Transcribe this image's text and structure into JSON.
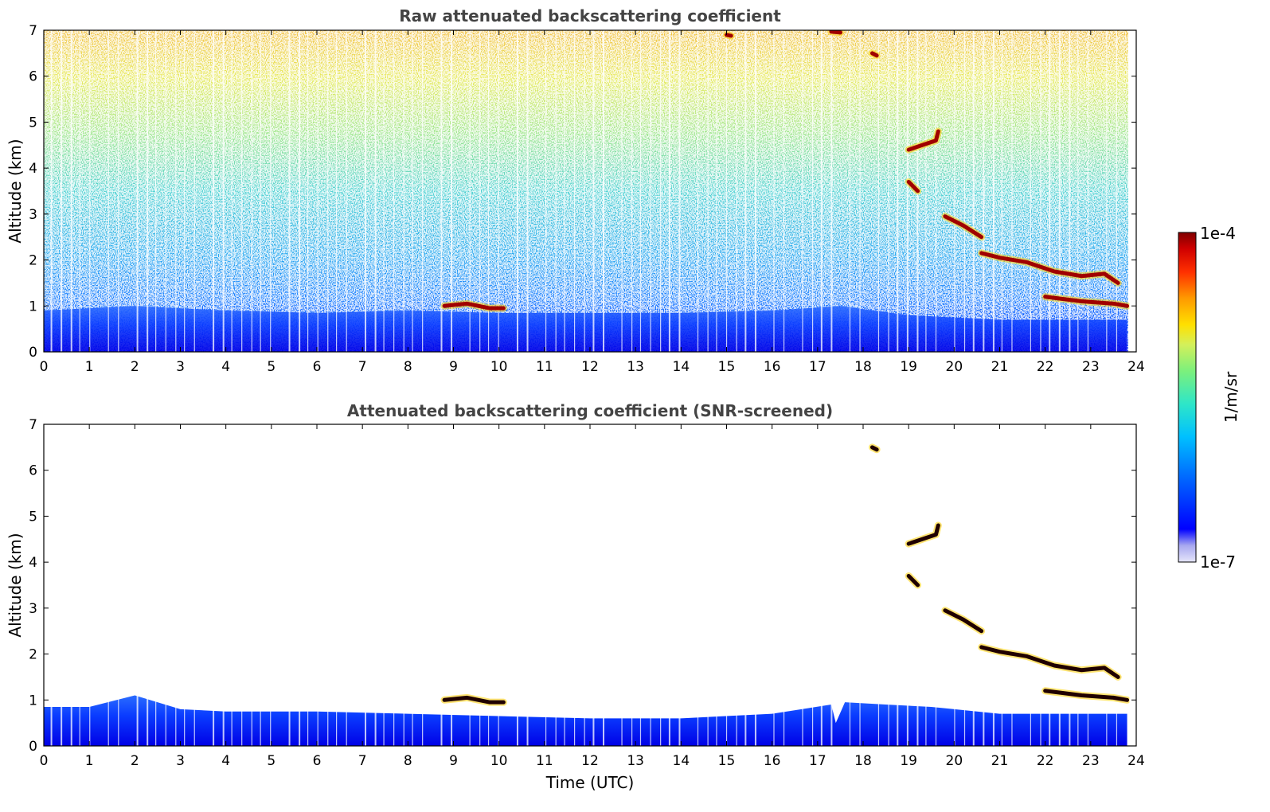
{
  "figure": {
    "colorbar": {
      "label": "1/m/sr",
      "max_label": "1e-4",
      "min_label": "1e-7",
      "scale": "log",
      "range": [
        1e-07,
        0.0001
      ],
      "colormap": [
        "#e6e6fa",
        "#b3b3f0",
        "#0000ff",
        "#0060ff",
        "#00c0ff",
        "#2ee6c8",
        "#7cf07c",
        "#d4f05a",
        "#ffe000",
        "#ff9a00",
        "#ff3000",
        "#d00000",
        "#800000"
      ]
    }
  },
  "chart_data": [
    {
      "type": "heatmap",
      "title": "Raw attenuated backscattering coefficient",
      "xlabel": "",
      "ylabel": "Altitude (km)",
      "xlim": [
        0,
        24
      ],
      "ylim": [
        0,
        7
      ],
      "xticks": [
        "0",
        "1",
        "2",
        "3",
        "4",
        "5",
        "6",
        "7",
        "8",
        "9",
        "10",
        "11",
        "12",
        "13",
        "14",
        "15",
        "16",
        "17",
        "18",
        "19",
        "20",
        "21",
        "22",
        "23",
        "24"
      ],
      "yticks": [
        "0",
        "1",
        "2",
        "3",
        "4",
        "5",
        "6",
        "7"
      ],
      "boundary_layer_top_km": [
        [
          0,
          0.9
        ],
        [
          2,
          1.0
        ],
        [
          4,
          0.9
        ],
        [
          6,
          0.85
        ],
        [
          8,
          0.9
        ],
        [
          10,
          0.85
        ],
        [
          12,
          0.85
        ],
        [
          14,
          0.85
        ],
        [
          16,
          0.9
        ],
        [
          17.5,
          1.0
        ],
        [
          19,
          0.8
        ],
        [
          21,
          0.7
        ],
        [
          23.8,
          0.7
        ]
      ],
      "cloud_layers": [
        {
          "points": [
            [
              8.8,
              1.0
            ],
            [
              9.3,
              1.05
            ],
            [
              9.8,
              0.95
            ],
            [
              10.1,
              0.95
            ]
          ]
        },
        {
          "points": [
            [
              19.0,
              4.4
            ],
            [
              19.3,
              4.5
            ],
            [
              19.6,
              4.6
            ],
            [
              19.65,
              4.8
            ]
          ]
        },
        {
          "points": [
            [
              19.0,
              3.7
            ],
            [
              19.2,
              3.5
            ]
          ]
        },
        {
          "points": [
            [
              19.8,
              2.95
            ],
            [
              20.2,
              2.75
            ],
            [
              20.6,
              2.5
            ]
          ]
        },
        {
          "points": [
            [
              20.6,
              2.15
            ],
            [
              21.0,
              2.05
            ],
            [
              21.6,
              1.95
            ],
            [
              22.2,
              1.75
            ],
            [
              22.8,
              1.65
            ],
            [
              23.3,
              1.7
            ],
            [
              23.6,
              1.5
            ]
          ]
        },
        {
          "points": [
            [
              22.0,
              1.2
            ],
            [
              22.8,
              1.1
            ],
            [
              23.5,
              1.05
            ],
            [
              23.8,
              1.0
            ]
          ]
        },
        {
          "points": [
            [
              18.2,
              6.5
            ],
            [
              18.3,
              6.45
            ]
          ]
        },
        {
          "points": [
            [
              15.0,
              6.9
            ],
            [
              15.1,
              6.88
            ]
          ]
        },
        {
          "points": [
            [
              17.3,
              6.97
            ],
            [
              17.5,
              6.95
            ]
          ]
        }
      ],
      "data_end_utc": 23.85
    },
    {
      "type": "heatmap",
      "title": "Attenuated backscattering coefficient (SNR-screened)",
      "xlabel": "Time (UTC)",
      "ylabel": "Altitude (km)",
      "xlim": [
        0,
        24
      ],
      "ylim": [
        0,
        7
      ],
      "xticks": [
        "0",
        "1",
        "2",
        "3",
        "4",
        "5",
        "6",
        "7",
        "8",
        "9",
        "10",
        "11",
        "12",
        "13",
        "14",
        "15",
        "16",
        "17",
        "18",
        "19",
        "20",
        "21",
        "22",
        "23",
        "24"
      ],
      "yticks": [
        "0",
        "1",
        "2",
        "3",
        "4",
        "5",
        "6",
        "7"
      ],
      "boundary_layer_top_km": [
        [
          0,
          0.85
        ],
        [
          1,
          0.85
        ],
        [
          2,
          1.1
        ],
        [
          3,
          0.8
        ],
        [
          4,
          0.75
        ],
        [
          6,
          0.75
        ],
        [
          8,
          0.7
        ],
        [
          10,
          0.65
        ],
        [
          12,
          0.6
        ],
        [
          14,
          0.6
        ],
        [
          16,
          0.7
        ],
        [
          17.3,
          0.9
        ],
        [
          17.4,
          0.5
        ],
        [
          17.6,
          0.95
        ],
        [
          18.5,
          0.9
        ],
        [
          19.5,
          0.85
        ],
        [
          21,
          0.7
        ],
        [
          23.8,
          0.7
        ]
      ],
      "cloud_layers": [
        {
          "points": [
            [
              8.8,
              1.0
            ],
            [
              9.3,
              1.05
            ],
            [
              9.8,
              0.95
            ],
            [
              10.1,
              0.95
            ]
          ]
        },
        {
          "points": [
            [
              19.0,
              4.4
            ],
            [
              19.3,
              4.5
            ],
            [
              19.6,
              4.6
            ],
            [
              19.65,
              4.8
            ]
          ]
        },
        {
          "points": [
            [
              19.0,
              3.7
            ],
            [
              19.2,
              3.5
            ]
          ]
        },
        {
          "points": [
            [
              19.8,
              2.95
            ],
            [
              20.2,
              2.75
            ],
            [
              20.6,
              2.5
            ]
          ]
        },
        {
          "points": [
            [
              20.6,
              2.15
            ],
            [
              21.0,
              2.05
            ],
            [
              21.6,
              1.95
            ],
            [
              22.2,
              1.75
            ],
            [
              22.8,
              1.65
            ],
            [
              23.3,
              1.7
            ],
            [
              23.6,
              1.5
            ]
          ]
        },
        {
          "points": [
            [
              22.0,
              1.2
            ],
            [
              22.8,
              1.1
            ],
            [
              23.5,
              1.05
            ],
            [
              23.8,
              1.0
            ]
          ]
        },
        {
          "points": [
            [
              18.2,
              6.5
            ],
            [
              18.3,
              6.45
            ]
          ]
        }
      ],
      "data_end_utc": 23.85
    }
  ]
}
